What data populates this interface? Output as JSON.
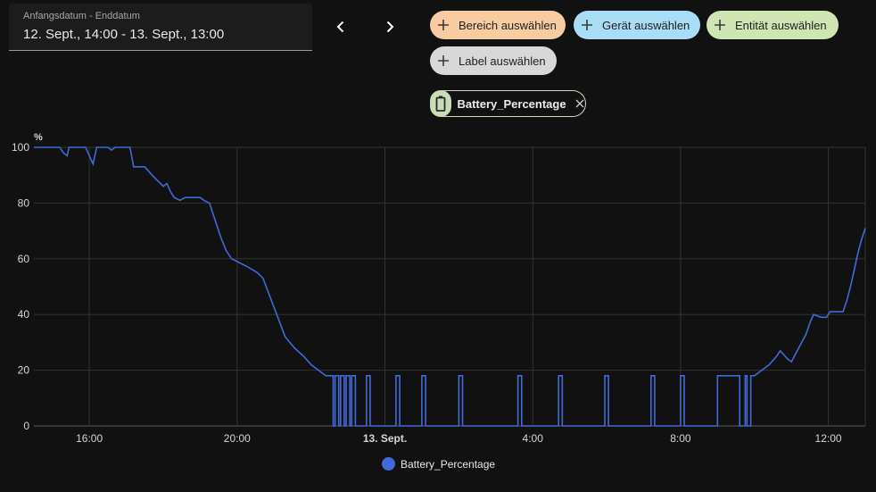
{
  "date_range": {
    "label": "Anfangsdatum - Enddatum",
    "value": "12. Sept., 14:00 - 13. Sept., 13:00"
  },
  "nav": {
    "prev_icon": "chevron-left-icon",
    "next_icon": "chevron-right-icon"
  },
  "chips": {
    "area": {
      "label": "Bereich auswählen",
      "color": "#f8cba0"
    },
    "device": {
      "label": "Gerät auswählen",
      "color": "#a9dcf5"
    },
    "entity": {
      "label": "Entität auswählen",
      "color": "#cfe6b4"
    },
    "label": {
      "label": "Label auswählen",
      "color": "#d8d8d8"
    }
  },
  "selected_entity": {
    "name": "Battery_Percentage",
    "icon": "battery-icon",
    "color": "#c9dcb8"
  },
  "chart_data": {
    "type": "line",
    "ylabel": "%",
    "ylim": [
      0,
      100
    ],
    "yticks": [
      0,
      20,
      40,
      60,
      80,
      100
    ],
    "xlim": [
      14.5,
      37.0
    ],
    "x_unit": "hours since 12. Sept. 00:00",
    "xticks": [
      {
        "x": 16,
        "label": "16:00",
        "bold": false
      },
      {
        "x": 20,
        "label": "20:00",
        "bold": false
      },
      {
        "x": 24,
        "label": "13. Sept.",
        "bold": true
      },
      {
        "x": 28,
        "label": "4:00",
        "bold": false
      },
      {
        "x": 32,
        "label": "8:00",
        "bold": false
      },
      {
        "x": 36,
        "label": "12:00",
        "bold": false
      }
    ],
    "grid": true,
    "line_color": "#4169d8",
    "legend_position": "bottom",
    "series": [
      {
        "name": "Battery_Percentage",
        "points": [
          [
            14.5,
            100
          ],
          [
            15.2,
            100
          ],
          [
            15.3,
            98
          ],
          [
            15.4,
            97
          ],
          [
            15.45,
            100
          ],
          [
            15.9,
            100
          ],
          [
            16.0,
            97
          ],
          [
            16.1,
            94
          ],
          [
            16.2,
            100
          ],
          [
            16.5,
            100
          ],
          [
            16.6,
            99
          ],
          [
            16.7,
            100
          ],
          [
            16.9,
            100
          ],
          [
            17.1,
            100
          ],
          [
            17.2,
            93
          ],
          [
            17.5,
            93
          ],
          [
            17.7,
            90
          ],
          [
            17.85,
            88
          ],
          [
            18.0,
            86
          ],
          [
            18.1,
            87
          ],
          [
            18.2,
            84
          ],
          [
            18.3,
            82
          ],
          [
            18.45,
            81
          ],
          [
            18.6,
            82
          ],
          [
            19.0,
            82
          ],
          [
            19.1,
            81
          ],
          [
            19.25,
            80
          ],
          [
            19.4,
            74
          ],
          [
            19.55,
            68
          ],
          [
            19.7,
            63
          ],
          [
            19.85,
            60
          ],
          [
            20.0,
            59
          ],
          [
            20.3,
            57
          ],
          [
            20.55,
            55
          ],
          [
            20.7,
            53
          ],
          [
            20.9,
            46
          ],
          [
            21.1,
            39
          ],
          [
            21.3,
            32
          ],
          [
            21.55,
            28
          ],
          [
            21.8,
            25
          ],
          [
            22.0,
            22
          ],
          [
            22.2,
            20
          ],
          [
            22.4,
            18
          ],
          [
            22.6,
            18
          ],
          [
            22.6,
            0
          ],
          [
            22.65,
            0
          ],
          [
            22.65,
            18
          ],
          [
            22.75,
            18
          ],
          [
            22.75,
            0
          ],
          [
            22.8,
            0
          ],
          [
            22.8,
            18
          ],
          [
            22.9,
            18
          ],
          [
            22.9,
            0
          ],
          [
            22.95,
            0
          ],
          [
            22.95,
            18
          ],
          [
            23.05,
            18
          ],
          [
            23.05,
            0
          ],
          [
            23.1,
            0
          ],
          [
            23.1,
            18
          ],
          [
            23.2,
            18
          ],
          [
            23.2,
            0
          ],
          [
            23.5,
            0
          ],
          [
            23.5,
            18
          ],
          [
            23.6,
            18
          ],
          [
            23.6,
            0
          ],
          [
            24.3,
            0
          ],
          [
            24.3,
            18
          ],
          [
            24.4,
            18
          ],
          [
            24.4,
            0
          ],
          [
            25.0,
            0
          ],
          [
            25.0,
            18
          ],
          [
            25.1,
            18
          ],
          [
            25.1,
            0
          ],
          [
            26.0,
            0
          ],
          [
            26.0,
            18
          ],
          [
            26.1,
            18
          ],
          [
            26.1,
            0
          ],
          [
            27.6,
            0
          ],
          [
            27.6,
            18
          ],
          [
            27.7,
            18
          ],
          [
            27.7,
            0
          ],
          [
            28.7,
            0
          ],
          [
            28.7,
            18
          ],
          [
            28.8,
            18
          ],
          [
            28.8,
            0
          ],
          [
            29.95,
            0
          ],
          [
            29.95,
            18
          ],
          [
            30.05,
            18
          ],
          [
            30.05,
            0
          ],
          [
            31.2,
            0
          ],
          [
            31.2,
            18
          ],
          [
            31.3,
            18
          ],
          [
            31.3,
            0
          ],
          [
            32.0,
            0
          ],
          [
            32.0,
            18
          ],
          [
            32.1,
            18
          ],
          [
            32.1,
            0
          ],
          [
            33.0,
            0
          ],
          [
            33.0,
            18
          ],
          [
            33.6,
            18
          ],
          [
            33.6,
            0
          ],
          [
            33.75,
            0
          ],
          [
            33.75,
            18
          ],
          [
            33.8,
            18
          ],
          [
            33.8,
            0
          ],
          [
            33.9,
            0
          ],
          [
            33.9,
            18
          ],
          [
            34.0,
            18
          ],
          [
            34.2,
            20
          ],
          [
            34.4,
            22
          ],
          [
            34.6,
            25
          ],
          [
            34.7,
            27
          ],
          [
            34.9,
            24
          ],
          [
            35.0,
            23
          ],
          [
            35.2,
            28
          ],
          [
            35.4,
            33
          ],
          [
            35.5,
            37
          ],
          [
            35.6,
            40
          ],
          [
            35.8,
            39
          ],
          [
            35.95,
            39
          ],
          [
            36.05,
            41
          ],
          [
            36.4,
            41
          ],
          [
            36.5,
            45
          ],
          [
            36.6,
            50
          ],
          [
            36.7,
            56
          ],
          [
            36.8,
            62
          ],
          [
            36.9,
            67
          ],
          [
            37.0,
            71
          ],
          [
            37.2,
            78
          ]
        ]
      }
    ]
  }
}
